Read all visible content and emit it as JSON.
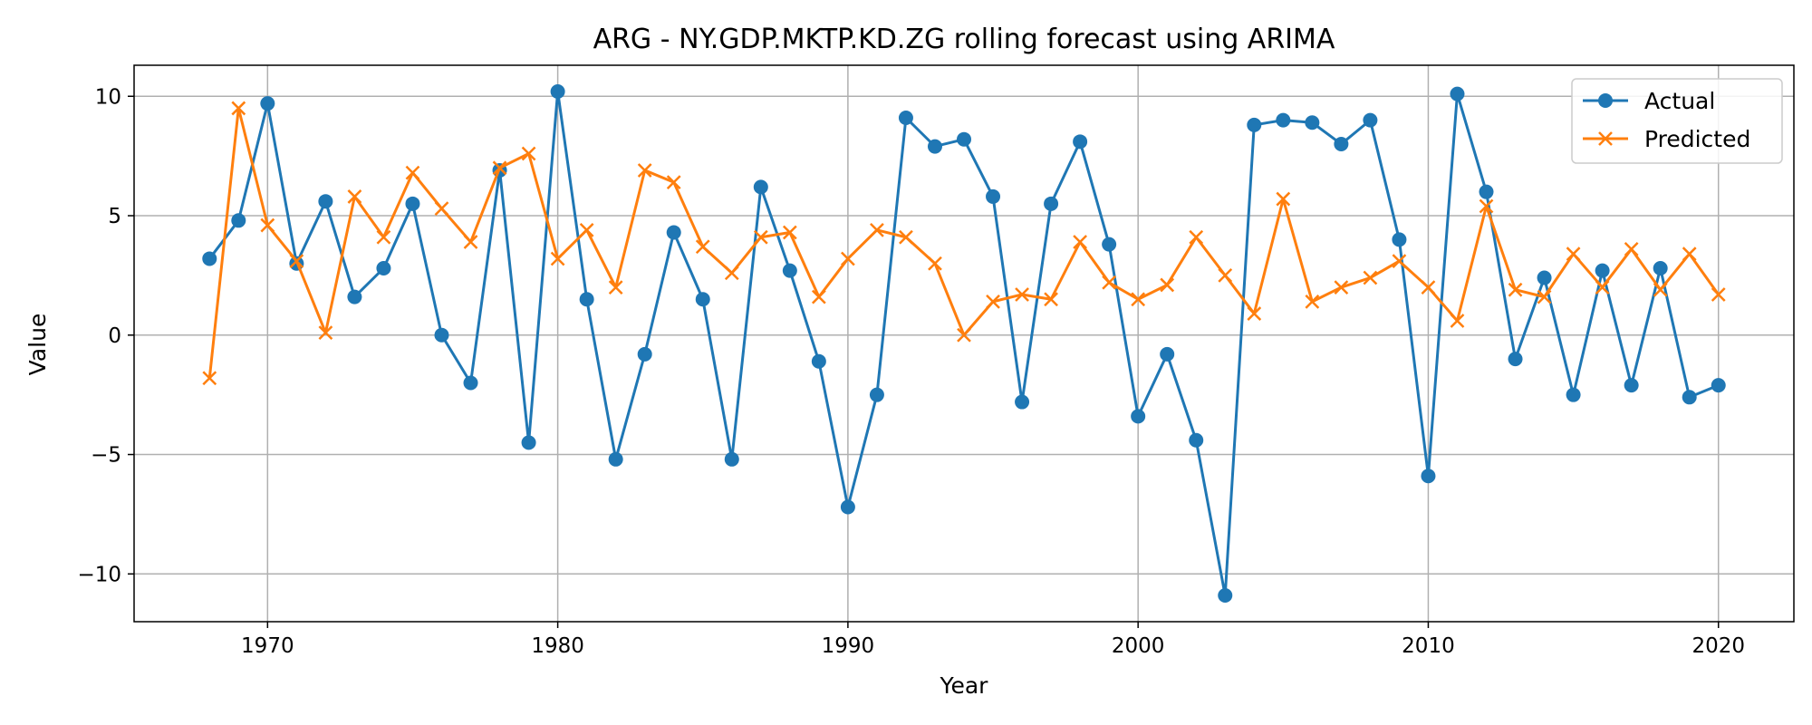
{
  "chart_data": {
    "type": "line",
    "title": "ARG - NY.GDP.MKTP.KD.ZG rolling forecast using ARIMA",
    "xlabel": "Year",
    "ylabel": "Value",
    "xlim": [
      1965.4,
      2022.6
    ],
    "ylim": [
      -12.0,
      11.3
    ],
    "xticks": [
      1970,
      1980,
      1990,
      2000,
      2010,
      2020
    ],
    "yticks": [
      -10,
      -5,
      0,
      5,
      10
    ],
    "ytick_labels": [
      "−10",
      "−5",
      "0",
      "5",
      "10"
    ],
    "grid": true,
    "legend_position": "top-right",
    "x": [
      1968,
      1969,
      1970,
      1971,
      1972,
      1973,
      1974,
      1975,
      1976,
      1977,
      1978,
      1979,
      1980,
      1981,
      1982,
      1983,
      1984,
      1985,
      1986,
      1987,
      1988,
      1989,
      1990,
      1991,
      1992,
      1993,
      1994,
      1995,
      1996,
      1997,
      1998,
      1999,
      2000,
      2001,
      2002,
      2003,
      2004,
      2005,
      2006,
      2007,
      2008,
      2009,
      2010,
      2011,
      2012,
      2013,
      2014,
      2015,
      2016,
      2017,
      2018,
      2019,
      2020
    ],
    "series": [
      {
        "name": "Actual",
        "color": "#1f77b4",
        "marker": "circle",
        "values": [
          3.2,
          4.8,
          9.7,
          3.0,
          5.6,
          1.6,
          2.8,
          5.5,
          0.0,
          -2.0,
          6.9,
          -4.5,
          10.2,
          1.5,
          -5.2,
          -0.8,
          4.3,
          1.5,
          -5.2,
          6.2,
          2.7,
          -1.1,
          -7.2,
          -2.5,
          9.1,
          7.9,
          8.2,
          5.8,
          -2.8,
          5.5,
          8.1,
          3.8,
          -3.4,
          -0.8,
          -4.4,
          -10.9,
          8.8,
          9.0,
          8.9,
          8.0,
          9.0,
          4.0,
          -5.9,
          10.1,
          6.0,
          -1.0,
          2.4,
          -2.5,
          2.7,
          -2.1,
          2.8,
          -2.6,
          -2.1
        ]
      },
      {
        "name": "Predicted",
        "color": "#ff7f0e",
        "marker": "x",
        "values": [
          -1.8,
          9.5,
          4.6,
          3.1,
          0.1,
          5.8,
          4.1,
          6.8,
          5.3,
          3.9,
          7.0,
          7.6,
          3.2,
          4.4,
          2.0,
          6.9,
          6.4,
          3.7,
          2.6,
          4.1,
          4.3,
          1.6,
          3.2,
          4.4,
          4.1,
          3.0,
          0.0,
          1.4,
          1.7,
          1.5,
          3.9,
          2.2,
          1.5,
          2.1,
          4.1,
          2.5,
          0.9,
          5.7,
          1.4,
          2.0,
          2.4,
          3.1,
          2.0,
          0.6,
          5.4,
          1.9,
          1.6,
          3.4,
          2.0,
          3.6,
          1.9,
          3.4,
          1.7
        ]
      }
    ]
  }
}
